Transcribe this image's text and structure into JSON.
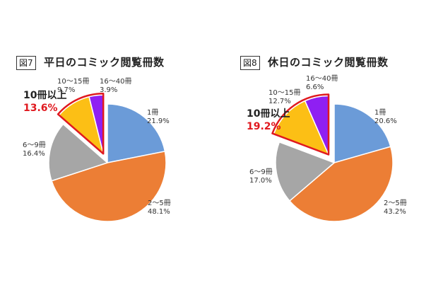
{
  "chart_data": [
    {
      "type": "pie",
      "figure_tag": "図7",
      "title": "平日のコミック閲覧冊数",
      "slices": [
        {
          "label": "1冊",
          "value": 21.9,
          "value_text": "21.9%",
          "color": "#6b9bd8"
        },
        {
          "label": "2～5冊",
          "value": 48.1,
          "value_text": "48.1%",
          "color": "#ec7e35"
        },
        {
          "label": "6～9冊",
          "value": 16.4,
          "value_text": "16.4%",
          "color": "#a6a6a6"
        },
        {
          "label": "10～15冊",
          "value": 9.7,
          "value_text": "9.7%",
          "color": "#fcbf15"
        },
        {
          "label": "16～40冊",
          "value": 3.9,
          "value_text": "3.9%",
          "color": "#8f1ff2"
        }
      ],
      "callout": {
        "label": "10冊以上",
        "value_text": "13.6%",
        "color": "#e0191f"
      }
    },
    {
      "type": "pie",
      "figure_tag": "図8",
      "title": "休日のコミック閲覧冊数",
      "slices": [
        {
          "label": "1冊",
          "value": 20.6,
          "value_text": "20.6%",
          "color": "#6b9bd8"
        },
        {
          "label": "2～5冊",
          "value": 43.2,
          "value_text": "43.2%",
          "color": "#ec7e35"
        },
        {
          "label": "6～9冊",
          "value": 17.0,
          "value_text": "17.0%",
          "color": "#a6a6a6"
        },
        {
          "label": "10～15冊",
          "value": 12.7,
          "value_text": "12.7%",
          "color": "#fcbf15"
        },
        {
          "label": "16～40冊",
          "value": 6.6,
          "value_text": "6.6%",
          "color": "#8f1ff2"
        }
      ],
      "callout": {
        "label": "10冊以上",
        "value_text": "19.2%",
        "color": "#e0191f"
      }
    }
  ]
}
